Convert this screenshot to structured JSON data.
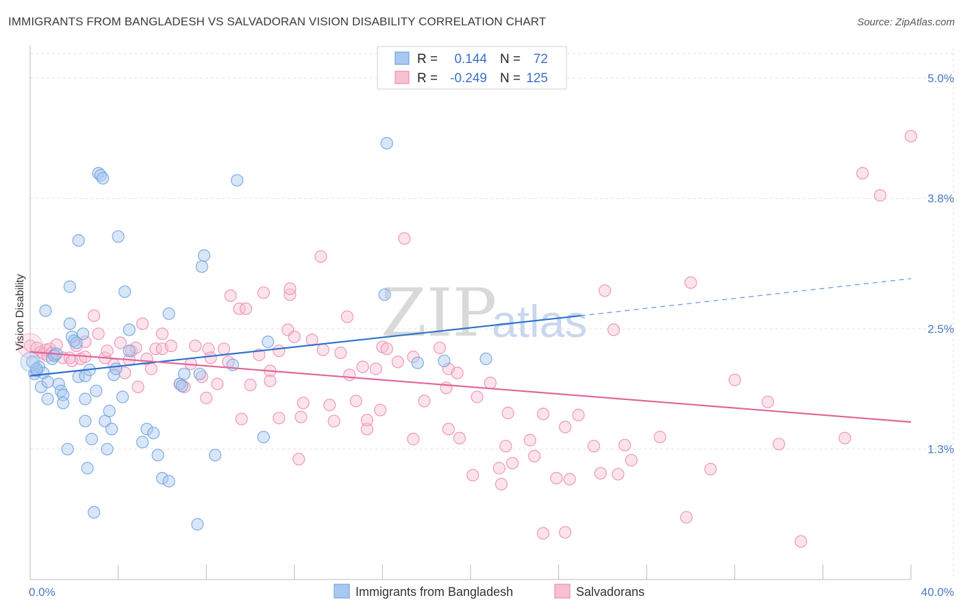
{
  "title": "IMMIGRANTS FROM BANGLADESH VS SALVADORAN VISION DISABILITY CORRELATION CHART",
  "source": "Source: ZipAtlas.com",
  "watermark": {
    "zip": "ZIP",
    "atlas": "atlas"
  },
  "colors": {
    "blue": "#6fa3e0",
    "blue_fill": "#a9c8f0",
    "blue_line": "#2a6fcf",
    "pink": "#ee8cb0",
    "pink_fill": "#f7c0d3",
    "pink_line": "#e0649a",
    "grid": "#e0e0e0",
    "tick_text": "#4a78c2"
  },
  "stats": {
    "rows": [
      {
        "r_label": "R =",
        "r_value": "0.144",
        "n_label": "N =",
        "n_value": "72"
      },
      {
        "r_label": "R =",
        "r_value": "-0.249",
        "n_label": "N =",
        "n_value": "125"
      }
    ]
  },
  "legend": {
    "items": [
      {
        "label": "Immigrants from Bangladesh"
      },
      {
        "label": "Salvadorans"
      }
    ]
  },
  "chart_data": {
    "type": "scatter",
    "title": "IMMIGRANTS FROM BANGLADESH VS SALVADORAN VISION DISABILITY CORRELATION CHART",
    "xlabel": "",
    "ylabel": "Vision Disability",
    "xlim": [
      0,
      40
    ],
    "ylim": [
      0.0,
      5.3
    ],
    "x_tick_labels": [
      {
        "value": 0,
        "label": "0.0%"
      },
      {
        "value": 40,
        "label": "40.0%"
      }
    ],
    "y_ticks": [
      {
        "value": 1.3,
        "label": "1.3%"
      },
      {
        "value": 2.5,
        "label": "2.5%"
      },
      {
        "value": 3.8,
        "label": "3.8%"
      },
      {
        "value": 5.0,
        "label": "5.0%"
      }
    ],
    "grid": true,
    "legend_position": "bottom",
    "series": [
      {
        "name": "Immigrants from Bangladesh",
        "color": "#6fa3e0",
        "trend": {
          "x0": 0,
          "y0": 2.03,
          "x1": 25,
          "y1": 2.63,
          "dash_to_x": 40,
          "dash_to_y": 3.0
        },
        "points": [
          [
            0.2,
            2.05
          ],
          [
            0.3,
            2.08
          ],
          [
            0.4,
            2.12
          ],
          [
            0.5,
            1.92
          ],
          [
            0.6,
            2.06
          ],
          [
            0.7,
            2.68
          ],
          [
            0.8,
            1.97
          ],
          [
            0.8,
            1.8
          ],
          [
            1.0,
            2.2
          ],
          [
            1.1,
            2.23
          ],
          [
            1.3,
            1.95
          ],
          [
            1.4,
            1.88
          ],
          [
            1.5,
            1.84
          ],
          [
            1.5,
            1.76
          ],
          [
            1.7,
            1.3
          ],
          [
            1.8,
            2.55
          ],
          [
            1.8,
            2.92
          ],
          [
            1.9,
            2.42
          ],
          [
            2.0,
            2.38
          ],
          [
            2.2,
            2.02
          ],
          [
            2.2,
            3.38
          ],
          [
            2.4,
            2.45
          ],
          [
            2.5,
            2.03
          ],
          [
            2.5,
            1.8
          ],
          [
            2.5,
            1.58
          ],
          [
            2.6,
            1.11
          ],
          [
            2.7,
            2.09
          ],
          [
            2.8,
            1.4
          ],
          [
            2.9,
            0.67
          ],
          [
            3.0,
            1.88
          ],
          [
            3.1,
            4.05
          ],
          [
            3.2,
            4.03
          ],
          [
            3.3,
            4.0
          ],
          [
            3.4,
            1.58
          ],
          [
            3.5,
            1.3
          ],
          [
            3.6,
            1.68
          ],
          [
            3.7,
            1.5
          ],
          [
            3.8,
            2.04
          ],
          [
            3.9,
            2.1
          ],
          [
            4.0,
            3.42
          ],
          [
            4.2,
            1.82
          ],
          [
            4.3,
            2.87
          ],
          [
            4.5,
            2.49
          ],
          [
            4.5,
            2.28
          ],
          [
            5.1,
            1.37
          ],
          [
            5.3,
            1.5
          ],
          [
            5.6,
            1.46
          ],
          [
            5.8,
            1.24
          ],
          [
            6.0,
            1.01
          ],
          [
            6.3,
            0.98
          ],
          [
            6.3,
            2.65
          ],
          [
            6.8,
            1.95
          ],
          [
            6.9,
            1.93
          ],
          [
            7.0,
            2.05
          ],
          [
            7.6,
            0.55
          ],
          [
            7.7,
            2.05
          ],
          [
            7.8,
            3.12
          ],
          [
            7.9,
            3.23
          ],
          [
            8.4,
            1.24
          ],
          [
            9.2,
            2.14
          ],
          [
            9.4,
            3.98
          ],
          [
            10.6,
            1.42
          ],
          [
            10.8,
            2.37
          ],
          [
            16.1,
            2.84
          ],
          [
            16.2,
            4.35
          ],
          [
            17.6,
            2.16
          ],
          [
            18.8,
            2.18
          ],
          [
            20.7,
            2.2
          ],
          [
            0.1,
            2.17
          ],
          [
            0.3,
            2.1
          ],
          [
            1.2,
            2.25
          ],
          [
            2.1,
            2.36
          ]
        ]
      },
      {
        "name": "Salvadorans",
        "color": "#ee8cb0",
        "trend": {
          "x0": 0,
          "y0": 2.27,
          "x1": 40,
          "y1": 1.57
        },
        "points": [
          [
            0.0,
            2.33
          ],
          [
            0.3,
            2.31
          ],
          [
            0.5,
            2.27
          ],
          [
            0.6,
            2.25
          ],
          [
            0.7,
            2.29
          ],
          [
            0.8,
            2.23
          ],
          [
            0.9,
            2.3
          ],
          [
            1.0,
            2.26
          ],
          [
            1.1,
            2.24
          ],
          [
            1.2,
            2.34
          ],
          [
            1.5,
            2.21
          ],
          [
            1.8,
            2.21
          ],
          [
            1.9,
            2.18
          ],
          [
            2.1,
            2.33
          ],
          [
            2.3,
            2.2
          ],
          [
            2.5,
            2.22
          ],
          [
            2.5,
            2.37
          ],
          [
            2.9,
            2.63
          ],
          [
            3.1,
            2.45
          ],
          [
            3.4,
            2.21
          ],
          [
            3.5,
            2.28
          ],
          [
            3.8,
            2.14
          ],
          [
            4.1,
            2.36
          ],
          [
            4.3,
            2.06
          ],
          [
            4.5,
            2.19
          ],
          [
            4.6,
            2.28
          ],
          [
            4.8,
            2.31
          ],
          [
            4.9,
            1.92
          ],
          [
            5.1,
            2.55
          ],
          [
            5.3,
            2.2
          ],
          [
            5.5,
            2.1
          ],
          [
            5.7,
            2.3
          ],
          [
            6.0,
            2.3
          ],
          [
            6.0,
            2.45
          ],
          [
            6.4,
            2.33
          ],
          [
            6.8,
            1.95
          ],
          [
            7.0,
            1.92
          ],
          [
            7.3,
            2.15
          ],
          [
            7.5,
            2.33
          ],
          [
            7.8,
            2.02
          ],
          [
            8.0,
            1.81
          ],
          [
            8.1,
            2.3
          ],
          [
            8.2,
            2.21
          ],
          [
            8.5,
            1.95
          ],
          [
            8.8,
            2.3
          ],
          [
            9.0,
            2.17
          ],
          [
            9.1,
            2.83
          ],
          [
            9.5,
            2.7
          ],
          [
            9.6,
            1.6
          ],
          [
            9.8,
            2.7
          ],
          [
            10.0,
            1.94
          ],
          [
            10.4,
            2.24
          ],
          [
            10.6,
            2.86
          ],
          [
            10.9,
            2.08
          ],
          [
            10.9,
            1.98
          ],
          [
            11.3,
            1.61
          ],
          [
            11.3,
            2.28
          ],
          [
            11.7,
            2.49
          ],
          [
            11.8,
            2.84
          ],
          [
            11.8,
            2.9
          ],
          [
            12.0,
            2.42
          ],
          [
            12.2,
            1.2
          ],
          [
            12.3,
            1.62
          ],
          [
            12.4,
            1.76
          ],
          [
            12.8,
            2.39
          ],
          [
            13.2,
            3.22
          ],
          [
            13.3,
            2.29
          ],
          [
            13.6,
            1.74
          ],
          [
            13.8,
            1.58
          ],
          [
            14.1,
            2.26
          ],
          [
            14.4,
            2.62
          ],
          [
            14.5,
            2.04
          ],
          [
            14.8,
            1.78
          ],
          [
            15.1,
            2.12
          ],
          [
            15.3,
            1.5
          ],
          [
            15.3,
            1.59
          ],
          [
            15.7,
            2.1
          ],
          [
            15.9,
            1.69
          ],
          [
            16.0,
            2.32
          ],
          [
            16.2,
            2.3
          ],
          [
            16.7,
            2.17
          ],
          [
            17.0,
            3.4
          ],
          [
            17.4,
            1.4
          ],
          [
            17.4,
            2.22
          ],
          [
            17.9,
            1.78
          ],
          [
            18.6,
            2.31
          ],
          [
            18.9,
            1.91
          ],
          [
            19.0,
            2.1
          ],
          [
            19.0,
            1.5
          ],
          [
            19.4,
            2.06
          ],
          [
            19.5,
            1.41
          ],
          [
            20.1,
            1.04
          ],
          [
            20.3,
            1.82
          ],
          [
            20.9,
            1.96
          ],
          [
            21.3,
            1.11
          ],
          [
            21.4,
            0.95
          ],
          [
            21.6,
            1.33
          ],
          [
            21.7,
            1.66
          ],
          [
            21.9,
            1.16
          ],
          [
            22.7,
            1.39
          ],
          [
            22.9,
            1.23
          ],
          [
            23.3,
            1.65
          ],
          [
            23.3,
            0.46
          ],
          [
            23.9,
            1.01
          ],
          [
            24.3,
            1.52
          ],
          [
            24.3,
            0.47
          ],
          [
            24.5,
            1.0
          ],
          [
            24.9,
            1.64
          ],
          [
            25.6,
            1.33
          ],
          [
            25.9,
            1.06
          ],
          [
            26.1,
            2.88
          ],
          [
            26.5,
            2.49
          ],
          [
            26.7,
            1.05
          ],
          [
            27.0,
            1.34
          ],
          [
            27.3,
            1.19
          ],
          [
            28.6,
            1.42
          ],
          [
            29.8,
            0.62
          ],
          [
            30.0,
            2.96
          ],
          [
            30.9,
            1.1
          ],
          [
            32.0,
            1.99
          ],
          [
            33.5,
            1.77
          ],
          [
            34.0,
            1.35
          ],
          [
            35.0,
            0.38
          ],
          [
            37.0,
            1.41
          ],
          [
            37.8,
            4.05
          ],
          [
            38.6,
            3.83
          ],
          [
            40.0,
            4.42
          ]
        ]
      }
    ]
  }
}
